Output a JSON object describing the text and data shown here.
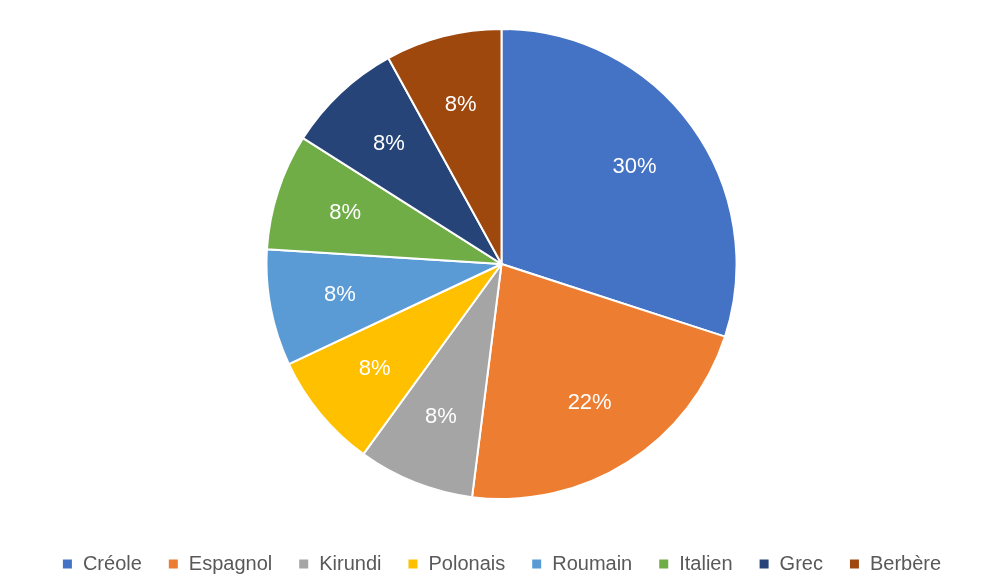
{
  "chart_data": {
    "type": "pie",
    "categories": [
      "Créole",
      "Espagnol",
      "Kirundi",
      "Polonais",
      "Roumain",
      "Italien",
      "Grec",
      "Berbère"
    ],
    "values": [
      30,
      22,
      8,
      8,
      8,
      8,
      8,
      8
    ],
    "colors": [
      "#4472c4",
      "#ed7d31",
      "#a5a5a5",
      "#ffc000",
      "#5b9bd5",
      "#70ad47",
      "#264478",
      "#9e480e"
    ],
    "value_labels": [
      "30%",
      "22%",
      "8%",
      "8%",
      "8%",
      "8%",
      "8%",
      "8%"
    ],
    "legend": "bottom"
  }
}
